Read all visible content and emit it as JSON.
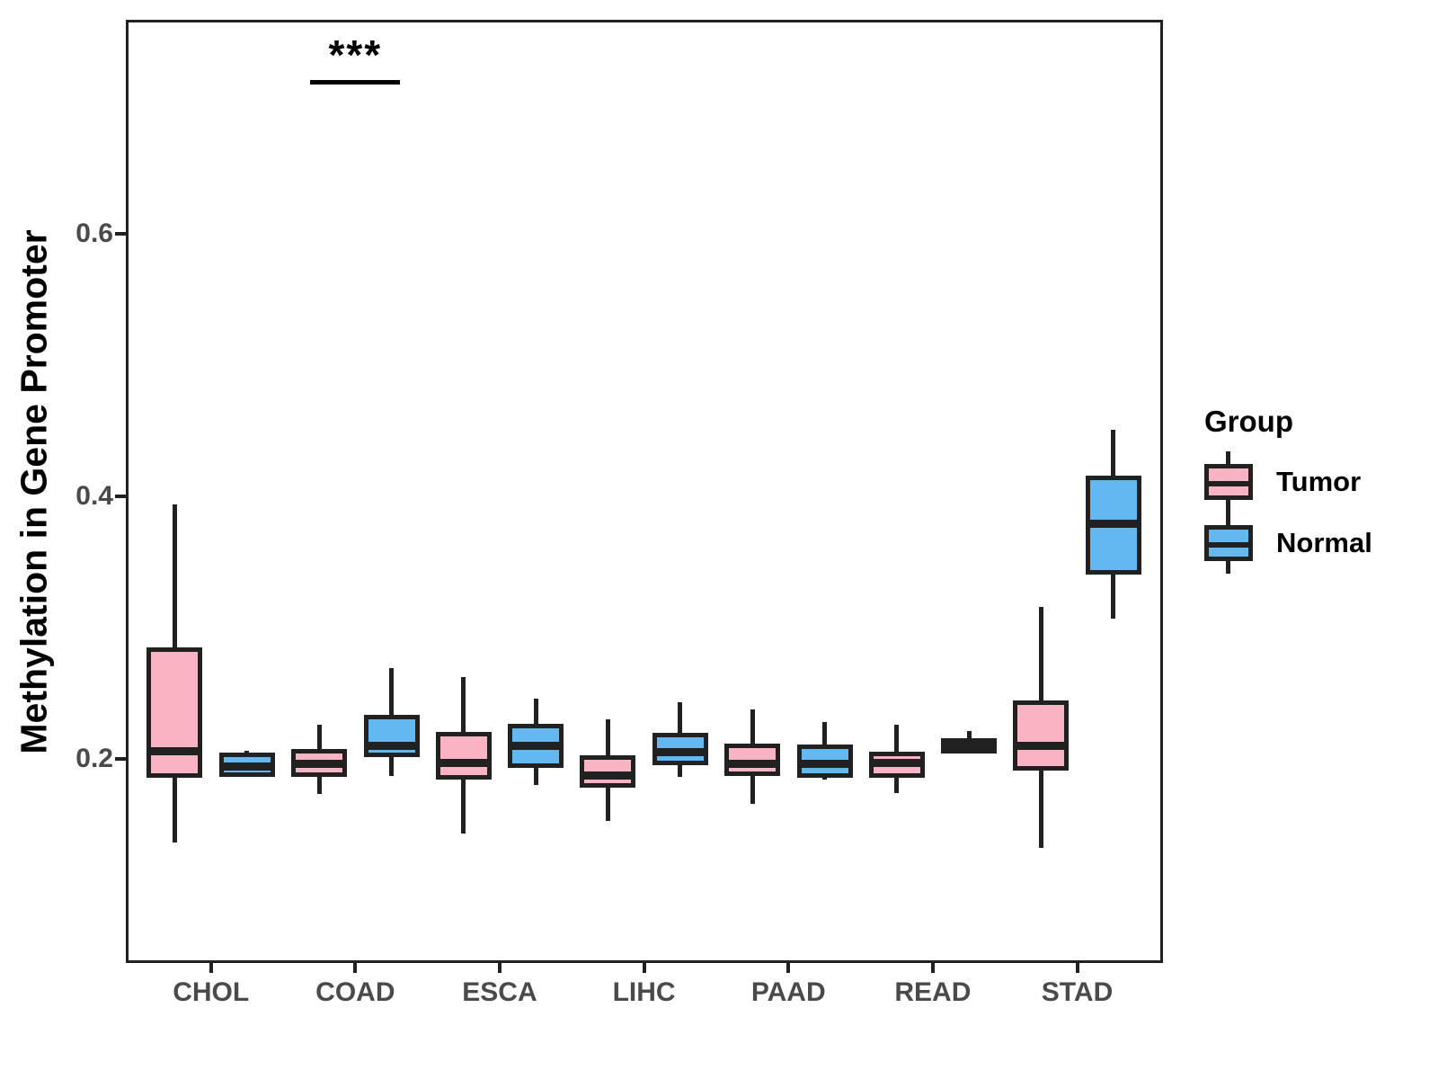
{
  "figure": {
    "y_axis": {
      "title": "Methylation in Gene Promoter",
      "tick_labels": [
        "0.6",
        "0.4",
        "0.2"
      ]
    },
    "x_axis": {
      "tick_labels": [
        "CHOL",
        "COAD",
        "ESCA",
        "LIHC",
        "PAAD",
        "READ",
        "STAD"
      ]
    },
    "legend": {
      "title": "Group",
      "entries": [
        {
          "label": "Tumor",
          "color": "#F9B3C2"
        },
        {
          "label": "Normal",
          "color": "#63B8F0"
        }
      ]
    },
    "significance": {
      "label": "***",
      "category": "COAD"
    }
  },
  "colors": {
    "stroke": "#212121",
    "tumor_fill": "#F9B3C2",
    "normal_fill": "#63B8F0",
    "axis_text": "#4a4a4a"
  },
  "chart_data": {
    "type": "boxplot",
    "title": "",
    "xlabel": "",
    "ylabel": "Methylation in Gene Promoter",
    "categories": [
      "CHOL",
      "COAD",
      "ESCA",
      "LIHC",
      "PAAD",
      "READ",
      "STAD"
    ],
    "yticks": [
      0.2,
      0.4,
      0.6
    ],
    "ylim": [
      0.045,
      0.763
    ],
    "grid": false,
    "legend_position": "right",
    "annotation": {
      "text": "***",
      "category": "COAD"
    },
    "series": [
      {
        "name": "Tumor",
        "color": "#F9B3C2",
        "boxes": [
          {
            "category": "CHOL",
            "min": 0.136,
            "q1": 0.187,
            "median": 0.206,
            "q3": 0.283,
            "max": 0.394
          },
          {
            "category": "COAD",
            "min": 0.173,
            "q1": 0.188,
            "median": 0.196,
            "q3": 0.206,
            "max": 0.226
          },
          {
            "category": "ESCA",
            "min": 0.143,
            "q1": 0.186,
            "median": 0.197,
            "q3": 0.219,
            "max": 0.262
          },
          {
            "category": "LIHC",
            "min": 0.153,
            "q1": 0.18,
            "median": 0.187,
            "q3": 0.201,
            "max": 0.23
          },
          {
            "category": "PAAD",
            "min": 0.166,
            "q1": 0.189,
            "median": 0.196,
            "q3": 0.21,
            "max": 0.238
          },
          {
            "category": "READ",
            "min": 0.174,
            "q1": 0.187,
            "median": 0.197,
            "q3": 0.204,
            "max": 0.226
          },
          {
            "category": "STAD",
            "min": 0.132,
            "q1": 0.193,
            "median": 0.21,
            "q3": 0.243,
            "max": 0.316
          }
        ]
      },
      {
        "name": "Normal",
        "color": "#63B8F0",
        "boxes": [
          {
            "category": "CHOL",
            "min": 0.188,
            "q1": 0.188,
            "median": 0.194,
            "q3": 0.203,
            "max": 0.206
          },
          {
            "category": "COAD",
            "min": 0.187,
            "q1": 0.203,
            "median": 0.21,
            "q3": 0.232,
            "max": 0.269
          },
          {
            "category": "ESCA",
            "min": 0.18,
            "q1": 0.195,
            "median": 0.21,
            "q3": 0.225,
            "max": 0.246
          },
          {
            "category": "LIHC",
            "min": 0.186,
            "q1": 0.197,
            "median": 0.205,
            "q3": 0.218,
            "max": 0.243
          },
          {
            "category": "PAAD",
            "min": 0.184,
            "q1": 0.187,
            "median": 0.196,
            "q3": 0.209,
            "max": 0.228
          },
          {
            "category": "READ",
            "min": 0.206,
            "q1": 0.206,
            "median": 0.21,
            "q3": 0.214,
            "max": 0.221
          },
          {
            "category": "STAD",
            "min": 0.307,
            "q1": 0.342,
            "median": 0.379,
            "q3": 0.414,
            "max": 0.451
          }
        ]
      }
    ]
  }
}
